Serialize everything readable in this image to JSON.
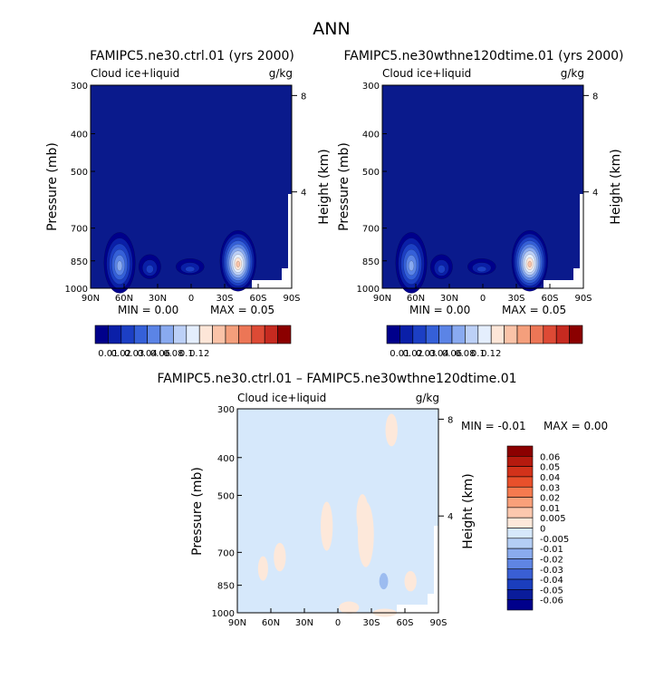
{
  "page_title": "ANN",
  "chart_data": [
    {
      "type": "heatmap",
      "title": "FAMIPC5.ne30.ctrl.01 (yrs 2000)",
      "subtitle_left": "Cloud ice+liquid",
      "subtitle_right": "g/kg",
      "ylabel": "Pressure (mb)",
      "ylabel_right": "Height (km)",
      "x_ticks": [
        "90N",
        "60N",
        "30N",
        "0",
        "30S",
        "60S",
        "90S"
      ],
      "y_ticks": [
        "300",
        "400",
        "500",
        "700",
        "850",
        "1000"
      ],
      "y_tick_values": [
        300,
        400,
        500,
        700,
        850,
        1000
      ],
      "right_ticks": [
        "8",
        "4"
      ],
      "right_tick_values": [
        8,
        4
      ],
      "ylim": [
        1000,
        300
      ],
      "xlim": [
        90,
        -90
      ],
      "min_label": "MIN =     0.00",
      "max_label": "MAX =     0.05",
      "colorbar_labels": [
        "0.01",
        "0.02",
        "0.03",
        "0.04",
        "0.06",
        "0.08",
        "0.1",
        "0.12"
      ],
      "colorbar_colors": [
        "#00008b",
        "#0a1fa8",
        "#1c3fc4",
        "#3560d8",
        "#5b84e6",
        "#89aaf0",
        "#bcd0f7",
        "#e4eefd",
        "#fde6d8",
        "#fac3a8",
        "#f49f7c",
        "#ec7656",
        "#dd4a35",
        "#c62a20",
        "#8b0000"
      ],
      "background_color": "#0a1a8c",
      "blobs": [
        {
          "lat": 64,
          "p": 860,
          "value": 0.03
        },
        {
          "lat": 37,
          "p": 880,
          "value": 0.015
        },
        {
          "lat": 1,
          "p": 880,
          "value": 0.015
        },
        {
          "lat": -42,
          "p": 850,
          "value": 0.05
        }
      ]
    },
    {
      "type": "heatmap",
      "title": "FAMIPC5.ne30wthne120dtime.01 (yrs 2000)",
      "subtitle_left": "Cloud ice+liquid",
      "subtitle_right": "g/kg",
      "ylabel": "Pressure (mb)",
      "ylabel_right": "Height (km)",
      "x_ticks": [
        "90N",
        "60N",
        "30N",
        "0",
        "30S",
        "60S",
        "90S"
      ],
      "y_ticks": [
        "300",
        "400",
        "500",
        "700",
        "850",
        "1000"
      ],
      "y_tick_values": [
        300,
        400,
        500,
        700,
        850,
        1000
      ],
      "right_ticks": [
        "8",
        "4"
      ],
      "right_tick_values": [
        8,
        4
      ],
      "ylim": [
        1000,
        300
      ],
      "xlim": [
        90,
        -90
      ],
      "min_label": "MIN =     0.00",
      "max_label": "MAX =     0.05",
      "colorbar_labels": [
        "0.01",
        "0.02",
        "0.03",
        "0.04",
        "0.06",
        "0.08",
        "0.1",
        "0.12"
      ],
      "colorbar_colors": [
        "#00008b",
        "#0a1fa8",
        "#1c3fc4",
        "#3560d8",
        "#5b84e6",
        "#89aaf0",
        "#bcd0f7",
        "#e4eefd",
        "#fde6d8",
        "#fac3a8",
        "#f49f7c",
        "#ec7656",
        "#dd4a35",
        "#c62a20",
        "#8b0000"
      ],
      "background_color": "#0a1a8c",
      "blobs": [
        {
          "lat": 64,
          "p": 860,
          "value": 0.03
        },
        {
          "lat": 37,
          "p": 880,
          "value": 0.015
        },
        {
          "lat": 1,
          "p": 880,
          "value": 0.015
        },
        {
          "lat": -42,
          "p": 850,
          "value": 0.05
        }
      ]
    },
    {
      "type": "heatmap",
      "title": "FAMIPC5.ne30.ctrl.01 – FAMIPC5.ne30wthne120dtime.01",
      "subtitle_left": "Cloud ice+liquid",
      "subtitle_right": "g/kg",
      "ylabel": "Pressure (mb)",
      "ylabel_right": "Height (km)",
      "x_ticks": [
        "90N",
        "60N",
        "30N",
        "0",
        "30S",
        "60S",
        "90S"
      ],
      "y_ticks": [
        "300",
        "400",
        "500",
        "700",
        "850",
        "1000"
      ],
      "y_tick_values": [
        300,
        400,
        500,
        700,
        850,
        1000
      ],
      "right_ticks": [
        "8",
        "4"
      ],
      "right_tick_values": [
        8,
        4
      ],
      "ylim": [
        1000,
        300
      ],
      "xlim": [
        90,
        -90
      ],
      "min_label": "MIN =    -0.01",
      "max_label": "MAX =     0.00",
      "colorbar_labels": [
        "0.06",
        "0.05",
        "0.04",
        "0.03",
        "0.02",
        "0.01",
        "0.005",
        "0",
        "-0.005",
        "-0.01",
        "-0.02",
        "-0.03",
        "-0.04",
        "-0.05",
        "-0.06"
      ],
      "colorbar_colors": [
        "#8b0000",
        "#b51a0e",
        "#d2321a",
        "#e8502b",
        "#f57a4f",
        "#f9a07a",
        "#fcc8ae",
        "#fde8da",
        "#d6e8fb",
        "#b4cef5",
        "#8aabee",
        "#5f85e3",
        "#3a5fd4",
        "#1b3ebd",
        "#0a1c9a",
        "#00008b"
      ],
      "background_color": "#d6e8fb",
      "positive_color": "#fde8da",
      "negative_color": "#9cbcf0",
      "patches_positive": [
        {
          "lat": -48,
          "p": 340,
          "value": 0.0
        },
        {
          "lat": 10,
          "p": 600,
          "value": 0.0
        },
        {
          "lat": -25,
          "p": 630,
          "value": 0.0
        },
        {
          "lat": -22,
          "p": 560,
          "value": 0.0
        },
        {
          "lat": 52,
          "p": 720,
          "value": 0.0
        },
        {
          "lat": 67,
          "p": 770,
          "value": 0.0
        },
        {
          "lat": -65,
          "p": 830,
          "value": 0.0
        },
        {
          "lat": -10,
          "p": 970,
          "value": 0.0
        },
        {
          "lat": -42,
          "p": 1000,
          "value": 0.0
        }
      ],
      "patches_negative": [
        {
          "lat": -41,
          "p": 830,
          "value": -0.01
        }
      ]
    }
  ]
}
